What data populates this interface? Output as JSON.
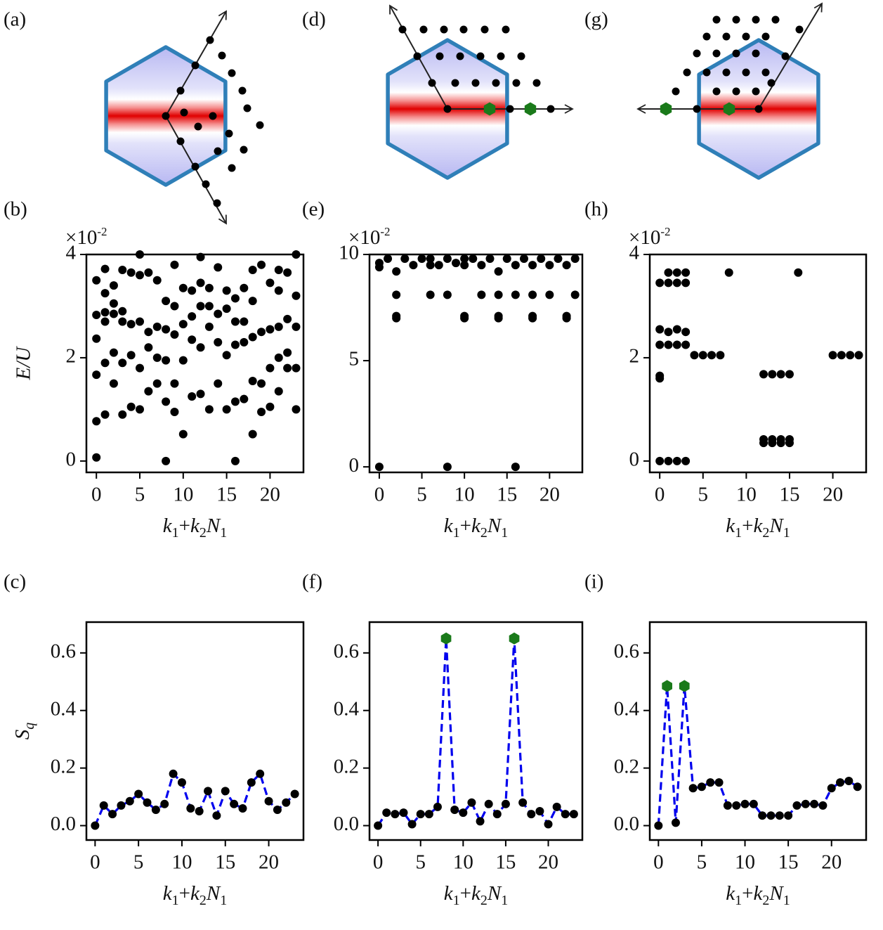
{
  "panel_labels": [
    "(a)",
    "(b)",
    "(c)",
    "(d)",
    "(e)",
    "(f)",
    "(g)",
    "(h)",
    "(i)"
  ],
  "chart_data": [
    {
      "type": "scatter",
      "color": "#000000",
      "x": [
        0,
        0,
        0,
        0,
        0,
        0,
        1,
        1,
        1,
        1,
        1,
        1,
        2,
        2,
        2,
        2,
        2,
        3,
        3,
        3,
        3,
        3,
        4,
        4,
        4,
        4,
        5,
        5,
        5,
        5,
        5,
        6,
        6,
        6,
        6,
        7,
        7,
        7,
        7,
        8,
        8,
        8,
        8,
        8,
        9,
        9,
        9,
        9,
        9,
        10,
        10,
        10,
        10,
        11,
        11,
        11,
        11,
        12,
        12,
        12,
        12,
        12,
        13,
        13,
        13,
        13,
        14,
        14,
        14,
        14,
        15,
        15,
        15,
        15,
        16,
        16,
        16,
        16,
        16,
        17,
        17,
        17,
        17,
        18,
        18,
        18,
        18,
        18,
        19,
        19,
        19,
        19,
        20,
        20,
        20,
        20,
        21,
        21,
        21,
        21,
        21,
        22,
        22,
        22,
        22,
        23,
        23,
        23,
        23,
        23
      ],
      "values": [
        0.07,
        0.77,
        1.67,
        2.37,
        2.83,
        3.5,
        0.9,
        1.9,
        2.7,
        2.88,
        3.25,
        3.72,
        1.5,
        2.1,
        2.85,
        3.05,
        3.4,
        0.9,
        1.9,
        2.7,
        2.9,
        3.7,
        1.05,
        2.05,
        2.65,
        3.65,
        1.0,
        1.8,
        2.7,
        3.6,
        4.0,
        1.35,
        2.2,
        2.5,
        3.65,
        1.5,
        2.0,
        2.6,
        3.5,
        0.0,
        1.15,
        1.95,
        2.55,
        3.1,
        0.95,
        1.5,
        2.45,
        3.0,
        3.8,
        0.52,
        1.95,
        2.65,
        3.35,
        1.25,
        2.35,
        2.8,
        3.3,
        1.3,
        2.2,
        3.0,
        3.45,
        3.95,
        1.0,
        2.6,
        3.0,
        3.35,
        1.5,
        2.3,
        2.85,
        3.75,
        1.0,
        2.05,
        2.95,
        3.3,
        0.0,
        1.15,
        2.25,
        2.7,
        3.15,
        1.2,
        2.3,
        2.7,
        3.35,
        0.52,
        1.55,
        2.4,
        3.1,
        3.7,
        0.95,
        1.5,
        2.5,
        3.8,
        1.05,
        1.8,
        2.55,
        3.45,
        1.35,
        2.0,
        2.6,
        3.3,
        3.7,
        1.8,
        2.1,
        2.75,
        3.65,
        1.0,
        1.8,
        2.6,
        3.2,
        4.0
      ],
      "xlim": [
        -1.15,
        23.85
      ],
      "ylim": [
        -0.22,
        4.0
      ],
      "xticks": [
        0,
        5,
        10,
        15,
        20
      ],
      "yticks": [
        0,
        2,
        4
      ],
      "scale_label": [
        "×10",
        "-2"
      ],
      "ylabel": "E/U",
      "xlabel": [
        "k",
        "1",
        "+",
        "k",
        "2",
        "N",
        "1"
      ]
    },
    {
      "type": "line",
      "x": [
        0,
        1,
        2,
        3,
        4,
        5,
        6,
        7,
        8,
        9,
        10,
        11,
        12,
        13,
        14,
        15,
        16,
        17,
        18,
        19,
        20,
        21,
        22,
        23
      ],
      "series": [
        {
          "color": "#0000ee",
          "values": [
            0.0,
            0.07,
            0.04,
            0.07,
            0.085,
            0.11,
            0.08,
            0.055,
            0.075,
            0.18,
            0.15,
            0.06,
            0.05,
            0.12,
            0.035,
            0.12,
            0.075,
            0.06,
            0.15,
            0.18,
            0.085,
            0.055,
            0.08,
            0.11
          ]
        }
      ],
      "xlim": [
        -1.0,
        24.0
      ],
      "ylim": [
        -0.05,
        0.707
      ],
      "xticks": [
        0,
        5,
        10,
        15,
        20
      ],
      "yticks": [
        {
          "value": 0,
          "label": "0.0"
        },
        0.2,
        0.4,
        0.6
      ],
      "ylabel": [
        "S",
        "q"
      ],
      "xlabel": [
        "k",
        "1",
        "+",
        "k",
        "2",
        "N",
        "1"
      ]
    },
    {
      "type": "scatter",
      "color": "#000000",
      "x": [
        0,
        0,
        0,
        1,
        2,
        2,
        2,
        2,
        3,
        4,
        5,
        6,
        6,
        6,
        7,
        8,
        8,
        8,
        9,
        10,
        10,
        10,
        10,
        11,
        12,
        12,
        13,
        14,
        14,
        14,
        14,
        15,
        16,
        16,
        16,
        17,
        18,
        18,
        18,
        18,
        19,
        20,
        20,
        21,
        22,
        22,
        22,
        23,
        23
      ],
      "values": [
        0,
        9.4,
        9.6,
        9.8,
        7.0,
        7.1,
        8.1,
        9.2,
        9.8,
        9.5,
        9.8,
        8.1,
        9.5,
        9.8,
        9.5,
        0,
        8.1,
        9.8,
        9.6,
        7.0,
        7.1,
        9.5,
        9.8,
        9.8,
        8.1,
        9.5,
        9.8,
        7.0,
        7.1,
        8.1,
        9.2,
        9.8,
        0,
        8.1,
        9.5,
        9.8,
        7.0,
        7.1,
        8.1,
        9.5,
        9.8,
        8.1,
        9.5,
        9.8,
        7.0,
        7.1,
        9.5,
        8.1,
        9.8
      ],
      "xlim": [
        -1.15,
        23.85
      ],
      "ylim": [
        -0.26,
        10
      ],
      "xticks": [
        0,
        5,
        10,
        15,
        20
      ],
      "yticks": [
        0,
        5,
        10
      ],
      "scale_label": [
        "×10",
        "-2"
      ],
      "xlabel": [
        "k",
        "1",
        "+",
        "k",
        "2",
        "N",
        "1"
      ]
    },
    {
      "type": "line",
      "x": [
        0,
        1,
        2,
        3,
        4,
        5,
        6,
        7,
        8,
        9,
        10,
        11,
        12,
        13,
        14,
        15,
        16,
        17,
        18,
        19,
        20,
        21,
        22,
        23
      ],
      "series": [
        {
          "color": "#0000ee",
          "values": [
            0.0,
            0.045,
            0.04,
            0.045,
            0.005,
            0.04,
            0.04,
            0.065,
            0.65,
            0.055,
            0.045,
            0.08,
            0.015,
            0.075,
            0.04,
            0.075,
            0.65,
            0.08,
            0.04,
            0.05,
            0.005,
            0.065,
            0.04,
            0.04
          ]
        },
        {
          "color": "#1a7a1a",
          "x": [
            8,
            16
          ],
          "values": [
            0.65,
            0.65
          ]
        }
      ],
      "xlim": [
        -1.0,
        24.0
      ],
      "ylim": [
        -0.05,
        0.707
      ],
      "xticks": [
        0,
        5,
        10,
        15,
        20
      ],
      "yticks": [
        {
          "value": 0,
          "label": "0.0"
        },
        0.2,
        0.4,
        0.6
      ],
      "xlabel": [
        "k",
        "1",
        "+",
        "k",
        "2",
        "N",
        "1"
      ]
    },
    {
      "type": "scatter",
      "color": "#000000",
      "x": [
        0,
        0,
        0,
        0,
        0,
        0,
        1,
        1,
        1,
        1,
        1,
        2,
        2,
        2,
        2,
        2,
        3,
        3,
        3,
        3,
        3,
        4,
        5,
        6,
        7,
        8,
        12,
        12,
        12,
        13,
        13,
        13,
        14,
        14,
        14,
        15,
        15,
        15,
        16,
        20,
        21,
        22,
        23
      ],
      "values": [
        0,
        1.6,
        1.65,
        2.25,
        2.55,
        3.45,
        0,
        2.25,
        2.5,
        3.45,
        3.65,
        0,
        2.25,
        2.55,
        3.45,
        3.65,
        0,
        2.25,
        2.5,
        3.45,
        3.65,
        2.05,
        2.05,
        2.05,
        2.05,
        3.65,
        0.35,
        0.42,
        1.68,
        0.35,
        0.42,
        1.68,
        0.35,
        0.42,
        1.68,
        0.35,
        0.42,
        1.68,
        3.65,
        2.05,
        2.05,
        2.05,
        2.05
      ],
      "xlim": [
        -1.15,
        23.85
      ],
      "ylim": [
        -0.22,
        4.0
      ],
      "xticks": [
        0,
        5,
        10,
        15,
        20
      ],
      "yticks": [
        0,
        2,
        4
      ],
      "scale_label": [
        "×10",
        "-2"
      ],
      "xlabel": [
        "k",
        "1",
        "+",
        "k",
        "2",
        "N",
        "1"
      ]
    },
    {
      "type": "line",
      "x": [
        0,
        1,
        2,
        3,
        4,
        5,
        6,
        7,
        8,
        9,
        10,
        11,
        12,
        13,
        14,
        15,
        16,
        17,
        18,
        19,
        20,
        21,
        22,
        23
      ],
      "series": [
        {
          "color": "#0000ee",
          "values": [
            0.0,
            0.485,
            0.01,
            0.485,
            0.13,
            0.135,
            0.15,
            0.15,
            0.07,
            0.07,
            0.075,
            0.075,
            0.035,
            0.035,
            0.035,
            0.035,
            0.07,
            0.075,
            0.075,
            0.07,
            0.13,
            0.15,
            0.155,
            0.135
          ]
        },
        {
          "color": "#1a7a1a",
          "x": [
            1,
            3
          ],
          "values": [
            0.485,
            0.485
          ]
        }
      ],
      "xlim": [
        -1.0,
        24.0
      ],
      "ylim": [
        -0.05,
        0.707
      ],
      "xticks": [
        0,
        5,
        10,
        15,
        20
      ],
      "yticks": [
        {
          "value": 0,
          "label": "0.0"
        },
        0.2,
        0.4,
        0.6
      ],
      "xlabel": [
        "k",
        "1",
        "+",
        "k",
        "2",
        "N",
        "1"
      ]
    }
  ]
}
